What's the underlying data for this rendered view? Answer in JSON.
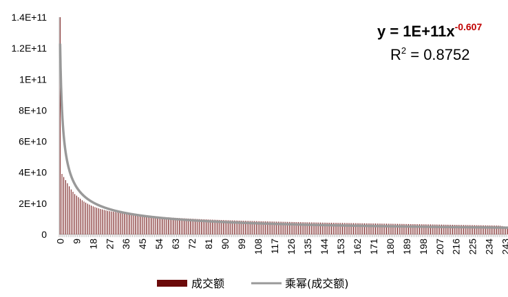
{
  "chart_data": {
    "type": "bar",
    "title": "",
    "xlabel": "",
    "ylabel": "",
    "ylim": [
      0,
      140000000000
    ],
    "y_ticks": [
      "0",
      "2E+10",
      "4E+10",
      "6E+10",
      "8E+10",
      "1E+11",
      "1.2E+11",
      "1.4E+11"
    ],
    "y_tick_values": [
      0,
      20000000000,
      40000000000,
      60000000000,
      80000000000,
      100000000000,
      120000000000,
      140000000000
    ],
    "x_range": [
      0,
      244
    ],
    "x_ticks": [
      "0",
      "9",
      "18",
      "27",
      "36",
      "45",
      "54",
      "63",
      "72",
      "81",
      "90",
      "99",
      "108",
      "117",
      "126",
      "135",
      "144",
      "153",
      "162",
      "171",
      "180",
      "189",
      "198",
      "207",
      "216",
      "225",
      "234",
      "243"
    ],
    "x_tick_values": [
      0,
      9,
      18,
      27,
      36,
      45,
      54,
      63,
      72,
      81,
      90,
      99,
      108,
      117,
      126,
      135,
      144,
      153,
      162,
      171,
      180,
      189,
      198,
      207,
      216,
      225,
      234,
      243
    ],
    "series": [
      {
        "name": "成交额",
        "kind": "bar",
        "color": "#6b0a0a",
        "values": [
          140000000000,
          39000000000,
          37000000000,
          35000000000,
          33000000000,
          31000000000,
          29000000000,
          27500000000,
          26000000000,
          25000000000,
          24000000000,
          23000000000,
          22000000000,
          21200000000,
          20500000000,
          19800000000,
          19200000000,
          18600000000,
          18100000000,
          17600000000,
          17200000000,
          16800000000,
          16400000000,
          16100000000,
          15800000000,
          15500000000,
          15200000000,
          15000000000,
          14800000000,
          14600000000,
          14400000000,
          14200000000,
          14000000000,
          13900000000,
          13700000000,
          13600000000,
          13400000000,
          13300000000,
          13100000000,
          13000000000,
          12900000000,
          12750000000,
          12600000000,
          12500000000,
          12400000000,
          12300000000,
          12200000000,
          12100000000,
          12000000000,
          11900000000,
          11800000000,
          11700000000,
          11600000000,
          11500000000,
          11400000000,
          11350000000,
          11250000000,
          11150000000,
          11080000000,
          11000000000,
          10920000000,
          10840000000,
          10760000000,
          10690000000,
          10620000000,
          10550000000,
          10480000000,
          10410000000,
          10350000000,
          10280000000,
          10220000000,
          10160000000,
          10100000000,
          10040000000,
          9980000000,
          9920000000,
          9870000000,
          9810000000,
          9760000000,
          9710000000,
          9660000000,
          9610000000,
          9560000000,
          9510000000,
          9460000000,
          9420000000,
          9370000000,
          9330000000,
          9280000000,
          9240000000,
          9200000000,
          9160000000,
          9120000000,
          9080000000,
          9040000000,
          9000000000,
          8960000000,
          8920000000,
          8890000000,
          8850000000,
          8810000000,
          8780000000,
          8740000000,
          8710000000,
          8670000000,
          8640000000,
          8610000000,
          8580000000,
          8540000000,
          8510000000,
          8480000000,
          8450000000,
          8420000000,
          8390000000,
          8360000000,
          8330000000,
          8300000000,
          8270000000,
          8240000000,
          8220000000,
          8190000000,
          8160000000,
          8130000000,
          8110000000,
          8080000000,
          8050000000,
          8030000000,
          8000000000,
          7980000000,
          7950000000,
          7930000000,
          7900000000,
          7880000000,
          7850000000,
          7830000000,
          7810000000,
          7780000000,
          7760000000,
          7740000000,
          7710000000,
          7690000000,
          7670000000,
          7650000000,
          7620000000,
          7600000000,
          7580000000,
          7560000000,
          7540000000,
          7520000000,
          7500000000,
          7480000000,
          7460000000,
          7440000000,
          7420000000,
          7400000000,
          7380000000,
          7360000000,
          7340000000,
          7320000000,
          7300000000,
          7280000000,
          7260000000,
          7240000000,
          7220000000,
          7200000000,
          7180000000,
          7160000000,
          7140000000,
          7120000000,
          7100000000,
          7080000000,
          7060000000,
          7040000000,
          7020000000,
          7000000000,
          6980000000,
          6960000000,
          6940000000,
          6920000000,
          6900000000,
          6880000000,
          6860000000,
          6840000000,
          6820000000,
          6800000000,
          6780000000,
          6760000000,
          6740000000,
          6720000000,
          6700000000,
          6680000000,
          6660000000,
          6640000000,
          6620000000,
          6600000000,
          6580000000,
          6560000000,
          6540000000,
          6520000000,
          6500000000,
          6480000000,
          6460000000,
          6440000000,
          6420000000,
          6400000000,
          6380000000,
          6360000000,
          6340000000,
          6320000000,
          6300000000,
          6280000000,
          6260000000,
          6240000000,
          6220000000,
          6200000000,
          6180000000,
          6160000000,
          6140000000,
          6120000000,
          6100000000,
          6080000000,
          6060000000,
          6040000000,
          6020000000,
          6000000000,
          5980000000,
          5960000000,
          5940000000,
          5920000000,
          5900000000,
          5880000000,
          5860000000,
          5840000000,
          5820000000,
          5800000000,
          5780000000,
          5760000000,
          5740000000,
          5720000000,
          5700000000,
          5600000000,
          5400000000,
          5200000000,
          5000000000,
          4800000000,
          3000000000,
          1500000000
        ]
      },
      {
        "name": "乘幂(成交额)",
        "kind": "trendline",
        "color": "#999999",
        "model": "power",
        "coefficient": 123000000000,
        "exponent": -0.607
      }
    ],
    "equation": {
      "prefix": "y = 1E+11x",
      "exponent": "-0.607",
      "r2_label": "R",
      "r2_sup": "2",
      "r2_value": " = 0.8752"
    },
    "legend_position": "bottom",
    "grid": false
  }
}
